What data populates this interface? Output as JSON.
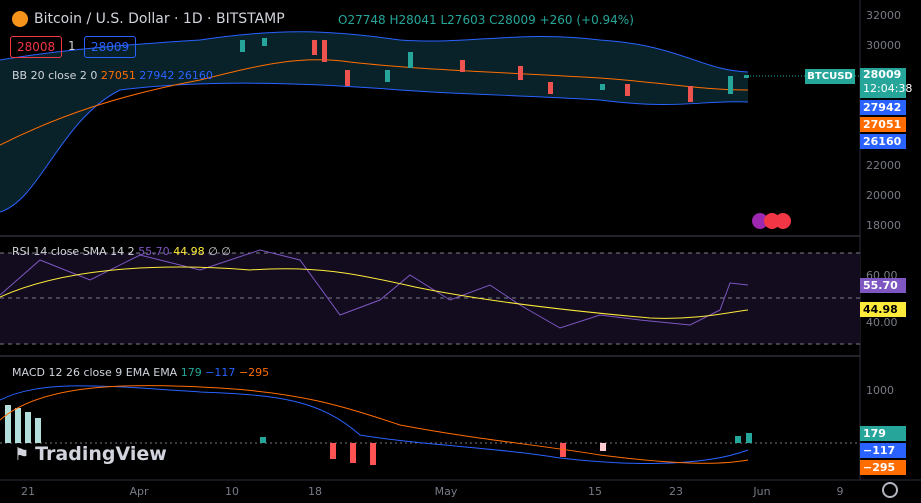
{
  "header": {
    "title": "Bitcoin / U.S. Dollar · 1D · BITSTAMP",
    "open": "O27748",
    "high": "H28041",
    "low": "L27603",
    "close": "C28009",
    "change": "+260 (+0.94%)"
  },
  "trade": {
    "sell": "28008",
    "qty": "1",
    "buy": "28009"
  },
  "bb": {
    "label": "BB 20 close 2 0",
    "basis": "27051",
    "upper": "27942",
    "lower": "26160"
  },
  "rsi": {
    "label": "RSI 14 close SMA 14 2",
    "value": "55.70",
    "sma": "44.98",
    "extra1": "∅",
    "extra2": "∅"
  },
  "macd": {
    "label": "MACD 12 26 close 9 EMA EMA",
    "hist": "179",
    "macd": "−117",
    "signal": "−295"
  },
  "price_axis": {
    "symbol": "BTCUSD",
    "last": "28009",
    "countdown": "12:04:38",
    "ticks": [
      "32000",
      "30000",
      "22000",
      "20000",
      "18000"
    ],
    "upper": "27942",
    "basis": "27051",
    "lower": "26160"
  },
  "rsi_axis": {
    "ticks": [
      "60.00",
      "40.00"
    ],
    "value": "55.70",
    "sma": "44.98"
  },
  "macd_axis": {
    "ticks": [
      "1000"
    ],
    "hist": "179",
    "macd": "−117",
    "signal": "−295"
  },
  "time_axis": [
    "21",
    "Apr",
    "10",
    "18",
    "May",
    "15",
    "23",
    "Jun",
    "9"
  ],
  "brand": "TradingView"
}
